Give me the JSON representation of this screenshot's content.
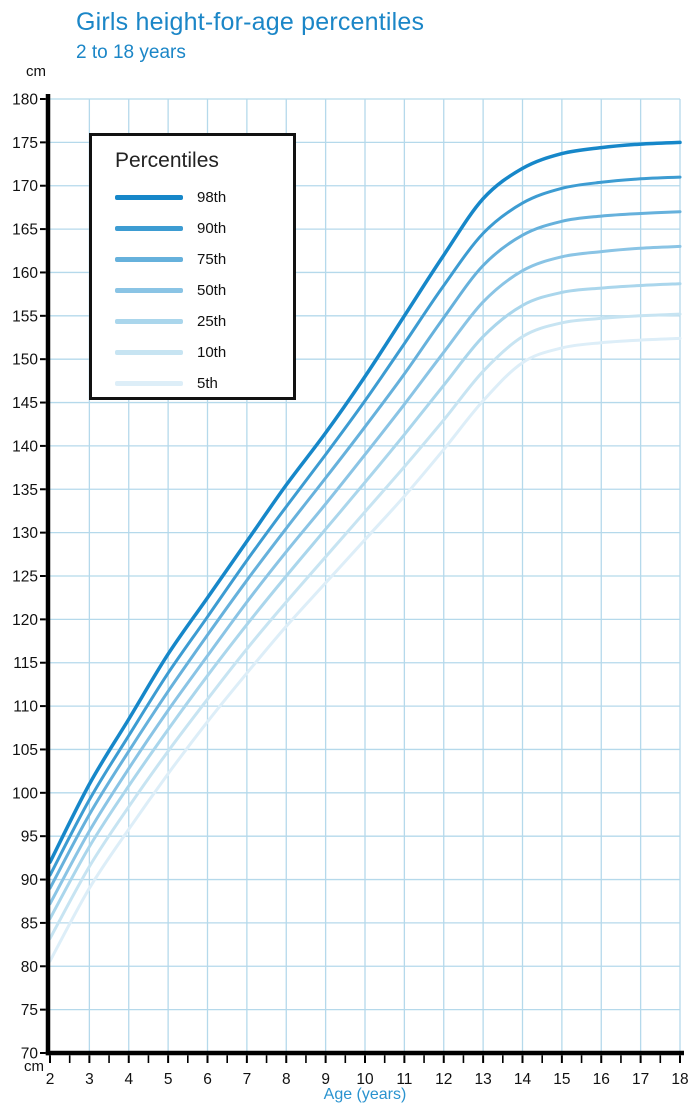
{
  "title": "Girls height-for-age percentiles",
  "subtitle": "2 to 18 years",
  "y_unit_top": "cm",
  "y_unit_bottom": "cm",
  "x_axis_label": "Age (years)",
  "legend": {
    "title": "Percentiles"
  },
  "colors": {
    "title": "#1b86c7",
    "subtitle": "#1b86c7",
    "x_axis_label": "#2a93cf",
    "grid": "#b5d9eb",
    "axis": "#000000",
    "tick_label": "#111111"
  },
  "chart_data": {
    "type": "line",
    "title": "Girls height-for-age percentiles",
    "subtitle": "2 to 18 years",
    "xlabel": "Age (years)",
    "ylabel": "cm",
    "xlim": [
      2,
      18
    ],
    "ylim": [
      70,
      180
    ],
    "x_ticks": [
      2,
      3,
      4,
      5,
      6,
      7,
      8,
      9,
      10,
      11,
      12,
      13,
      14,
      15,
      16,
      17,
      18
    ],
    "y_ticks": [
      70,
      75,
      80,
      85,
      90,
      95,
      100,
      105,
      110,
      115,
      120,
      125,
      130,
      135,
      140,
      145,
      150,
      155,
      160,
      165,
      170,
      175,
      180
    ],
    "grid": true,
    "legend_position": "upper-left",
    "x": [
      2,
      3,
      4,
      5,
      6,
      7,
      8,
      9,
      10,
      11,
      12,
      13,
      14,
      15,
      16,
      17,
      18
    ],
    "series": [
      {
        "name": "98th",
        "color": "#1687c9",
        "values": [
          92,
          101,
          108.5,
          116,
          122.5,
          129,
          135.5,
          141.5,
          148,
          155,
          162,
          168.5,
          172,
          173.7,
          174.4,
          174.8,
          175
        ]
      },
      {
        "name": "90th",
        "color": "#3d9cd2",
        "values": [
          90.5,
          99.2,
          106.6,
          113.8,
          120.3,
          126.8,
          133,
          139,
          145.2,
          151.8,
          158.5,
          164.5,
          168,
          169.7,
          170.4,
          170.8,
          171
        ]
      },
      {
        "name": "75th",
        "color": "#66b1dc",
        "values": [
          89,
          97.5,
          104.8,
          111.7,
          118.2,
          124.5,
          130.5,
          136.3,
          142.2,
          148.3,
          154.8,
          160.8,
          164.3,
          165.9,
          166.5,
          166.8,
          167
        ]
      },
      {
        "name": "50th",
        "color": "#8ac4e5",
        "values": [
          87.2,
          95.6,
          102.8,
          109.5,
          115.8,
          122,
          127.8,
          133.3,
          139,
          144.8,
          150.8,
          156.6,
          160.2,
          161.8,
          162.4,
          162.8,
          163
        ]
      },
      {
        "name": "25th",
        "color": "#aad6ec",
        "values": [
          85.5,
          93.8,
          100.8,
          107.3,
          113.5,
          119.4,
          125,
          130.4,
          135.8,
          141.3,
          147,
          152.6,
          156.2,
          157.7,
          158.2,
          158.5,
          158.7
        ]
      },
      {
        "name": "10th",
        "color": "#c7e4f2",
        "values": [
          83.2,
          91.5,
          98.4,
          104.8,
          110.8,
          116.6,
          122,
          127.2,
          132.4,
          137.6,
          143,
          148.6,
          152.6,
          154.2,
          154.7,
          155,
          155.2
        ]
      },
      {
        "name": "5th",
        "color": "#ddeef8",
        "values": [
          80.6,
          89,
          95.8,
          102.2,
          108.2,
          113.8,
          119.2,
          124.2,
          129.2,
          134.2,
          139.6,
          145.2,
          149.6,
          151.3,
          151.9,
          152.2,
          152.4
        ]
      }
    ]
  }
}
